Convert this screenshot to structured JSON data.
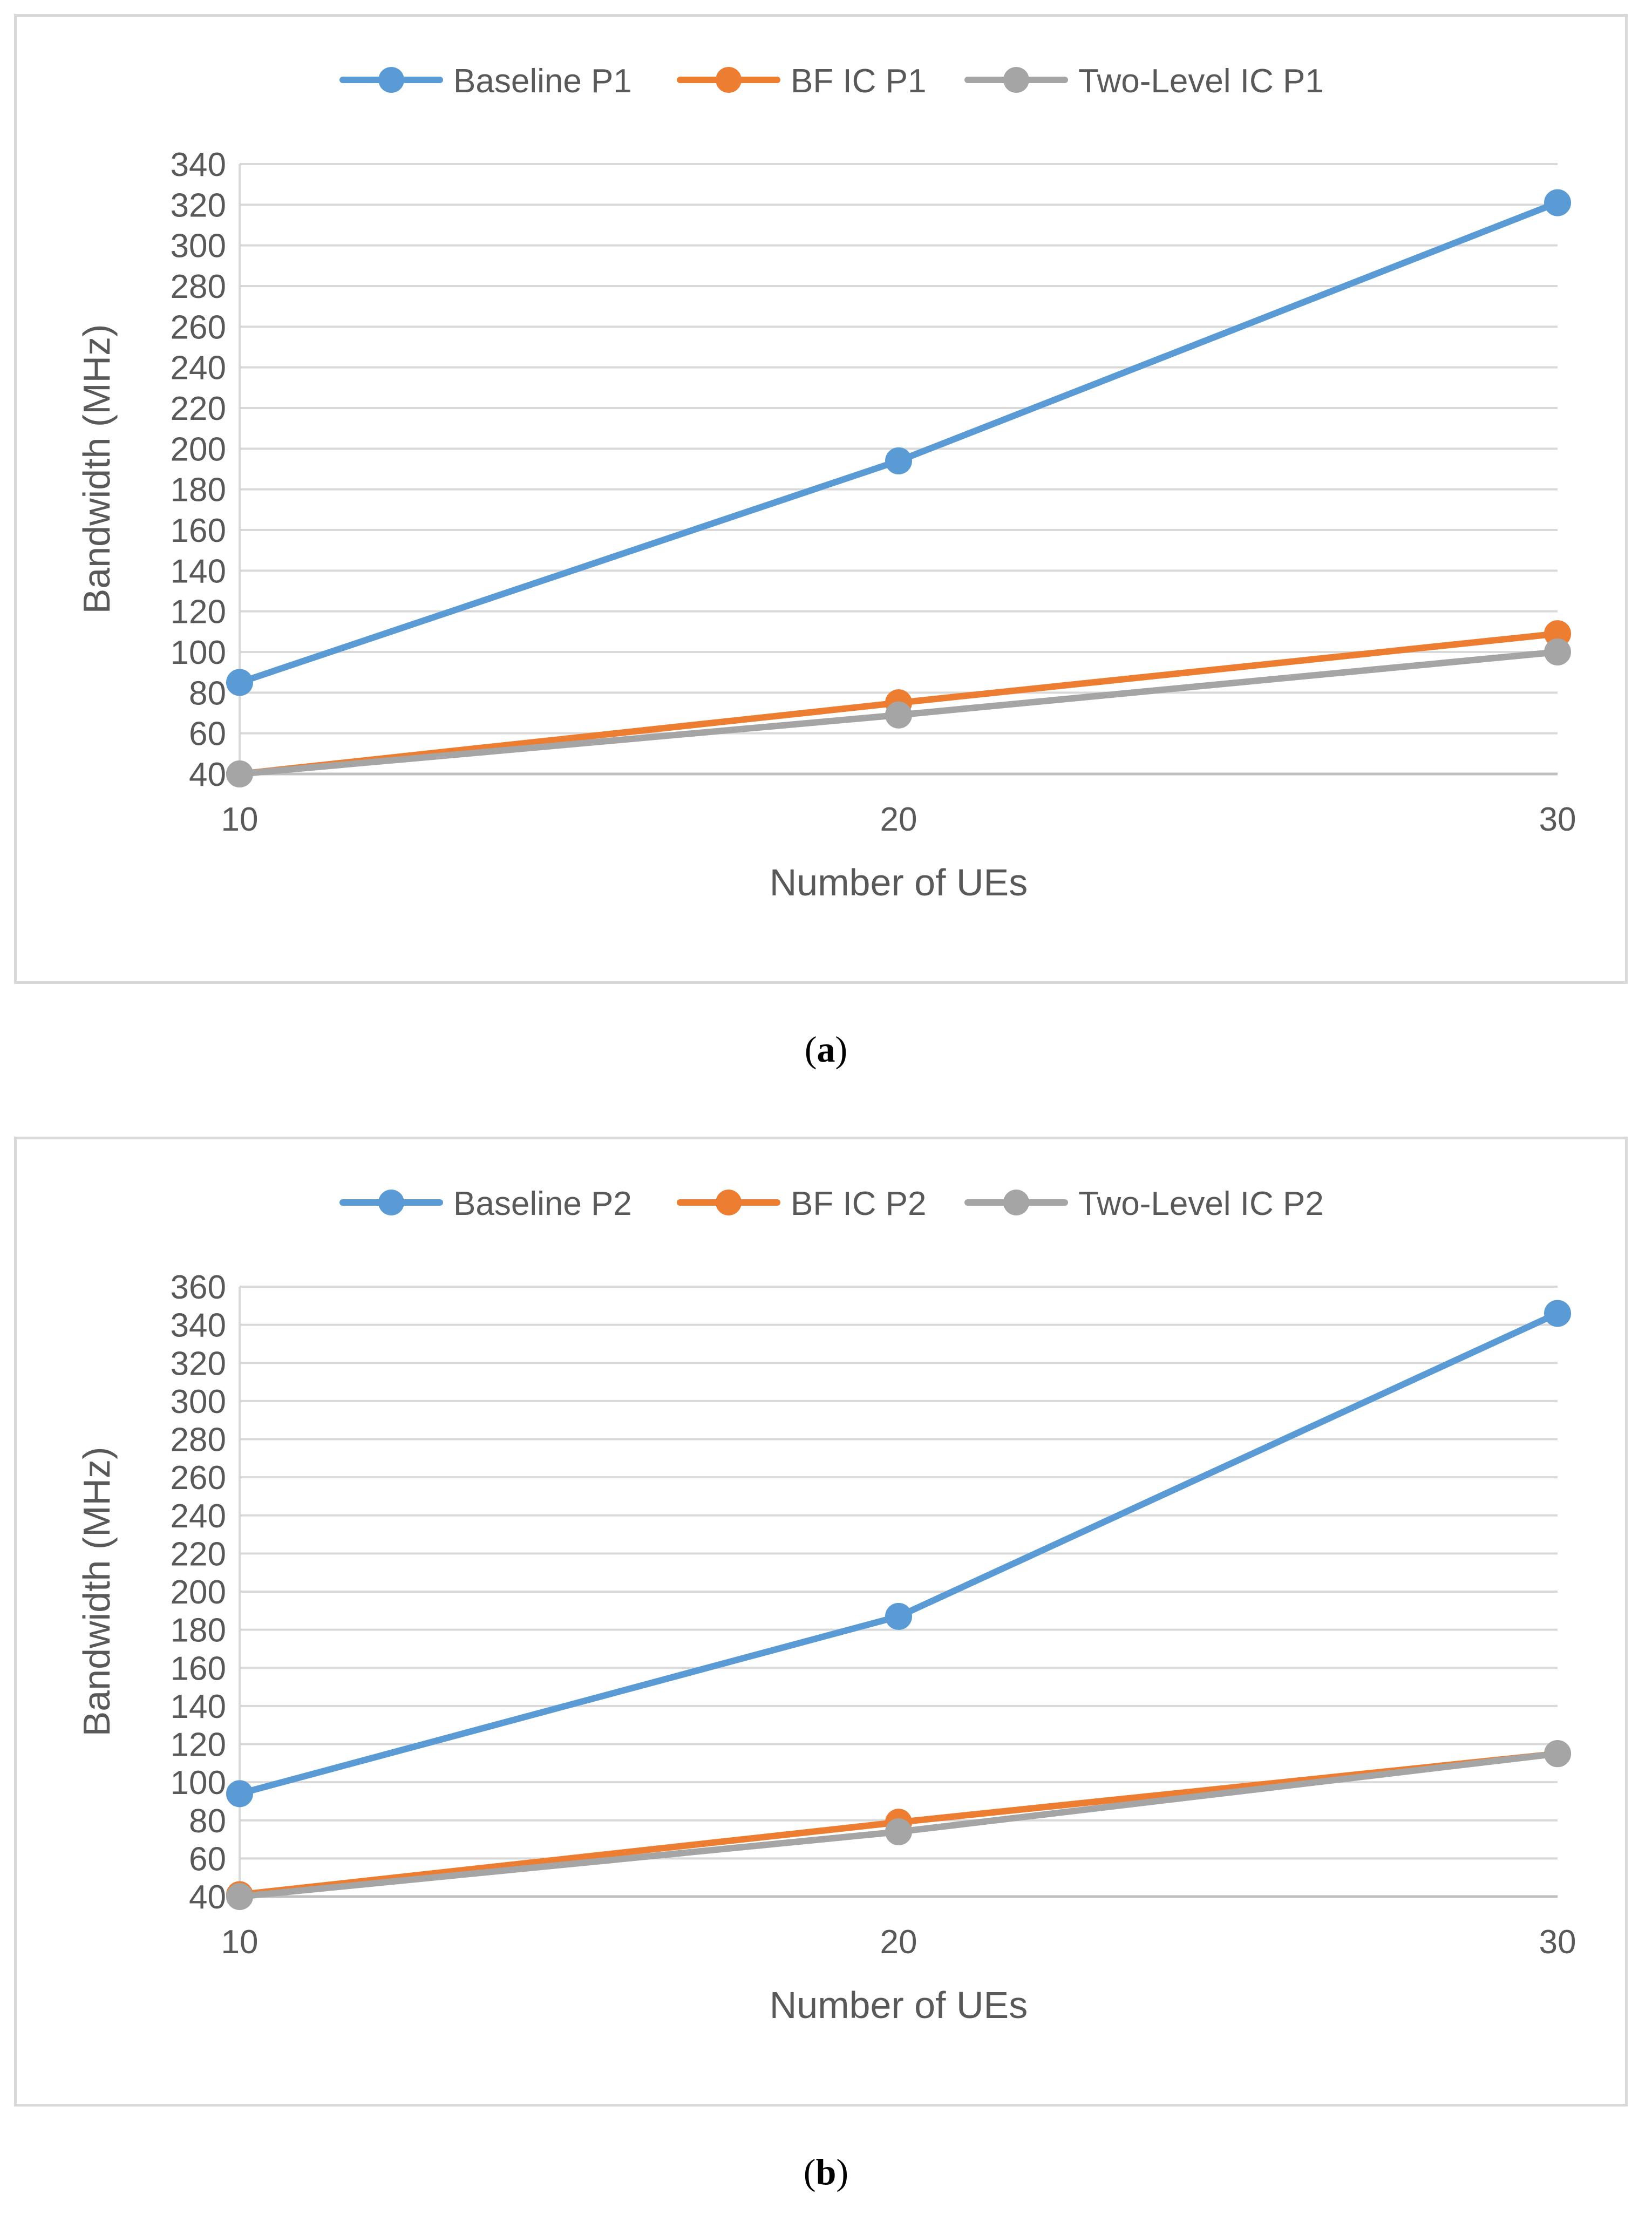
{
  "chart_data": [
    {
      "id": "a",
      "type": "line",
      "x": [
        10,
        20,
        30
      ],
      "categories": [
        "10",
        "20",
        "30"
      ],
      "series": [
        {
          "name": "Baseline P1",
          "color": "#5B9BD5",
          "values": [
            85,
            194,
            321
          ]
        },
        {
          "name": "BF IC P1",
          "color": "#ED7D31",
          "values": [
            40,
            75,
            109
          ]
        },
        {
          "name": "Two-Level IC P1",
          "color": "#A5A5A5",
          "values": [
            40,
            69,
            100
          ]
        }
      ],
      "title": "",
      "xlabel": "Number of UEs",
      "ylabel": "Bandwidth (MHz)",
      "ylim": [
        40,
        340
      ],
      "ytick_step": 20,
      "grid": true,
      "legend": "top-center"
    },
    {
      "id": "b",
      "type": "line",
      "x": [
        10,
        20,
        30
      ],
      "categories": [
        "10",
        "20",
        "30"
      ],
      "series": [
        {
          "name": "Baseline P2",
          "color": "#5B9BD5",
          "values": [
            94,
            187,
            346
          ]
        },
        {
          "name": "BF IC P2",
          "color": "#ED7D31",
          "values": [
            41,
            79,
            115
          ]
        },
        {
          "name": "Two-Level IC P2",
          "color": "#A5A5A5",
          "values": [
            40,
            74,
            115
          ]
        }
      ],
      "title": "",
      "xlabel": "Number of UEs",
      "ylabel": "Bandwidth (MHz)",
      "ylim": [
        40,
        360
      ],
      "ytick_step": 20,
      "grid": true,
      "legend": "top-center"
    }
  ],
  "captions": {
    "a": {
      "open": "(",
      "letter": "a",
      "close": ")"
    },
    "b": {
      "open": "(",
      "letter": "b",
      "close": ")"
    }
  }
}
